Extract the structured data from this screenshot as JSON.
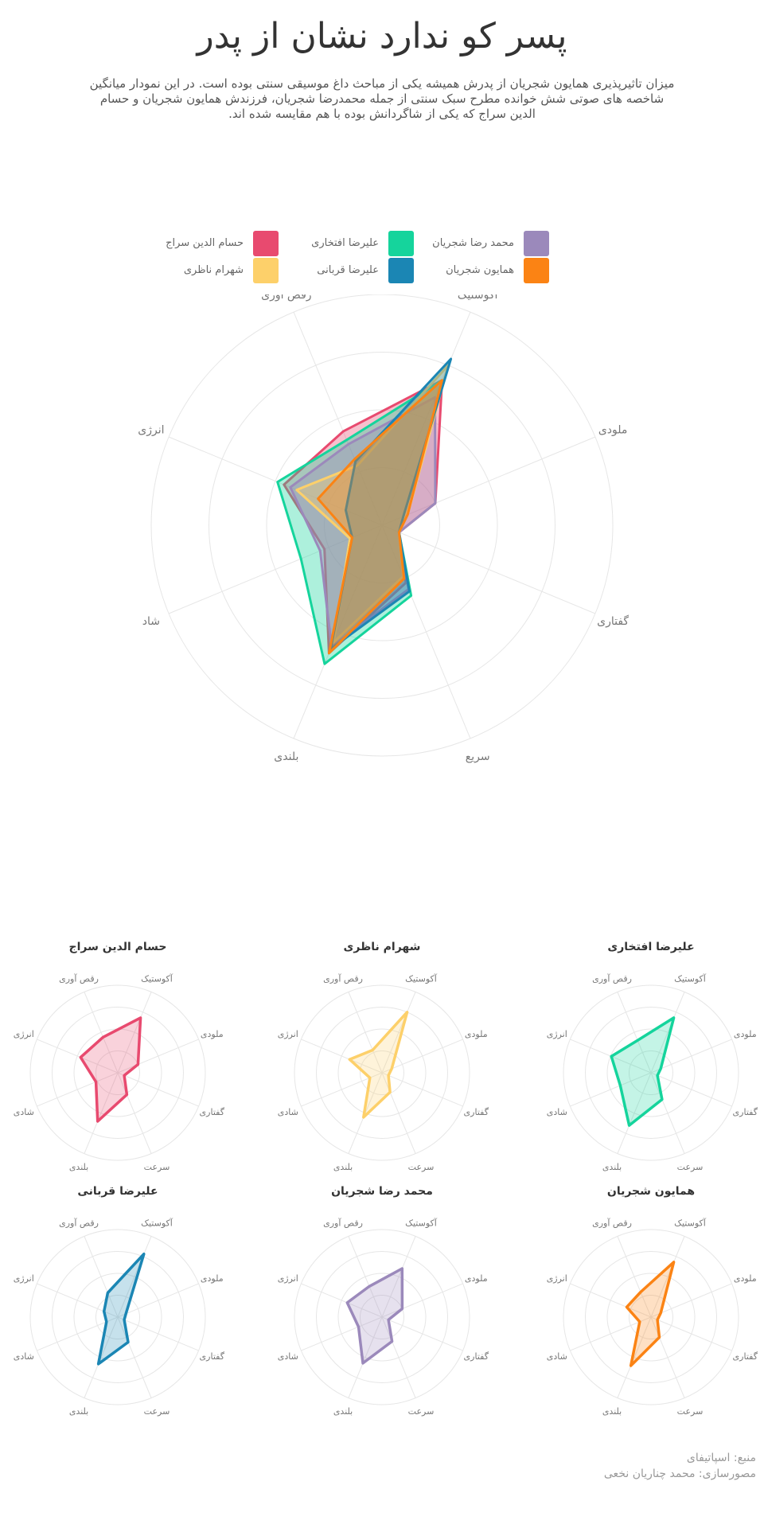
{
  "title": "پسر کو ندارد نشان از  پدر",
  "subtitle": "میزان تاثیرپذیری همایون شجریان از پدرش همیشه یکی از مباحث داغ موسیقی سنتی بوده است. در این نمودار میانگین شاخصه های صوتی شش خوانده مطرح سبک سنتی از جمله محمدرضا شجریان، فرزندش همایون شجریان و حسام الدین سراج که یکی از شاگردانش بوده با هم مقایسه شده اند.",
  "credits": {
    "source": "منبع: اسپاتیفای",
    "author": "مصورسازی: محمد چناریان نخعی"
  },
  "chart_data": [
    {
      "type": "radar",
      "axes": [
        "آکوستیک",
        "ملودی",
        "گفتاری",
        "سریع",
        "بلندی",
        "شاد",
        "انرژی",
        "رقص آوری"
      ],
      "legend_position": "top",
      "grid": true,
      "rmax": 1,
      "series": [
        {
          "name": "حسام الدین سراج",
          "color": "#e84a6f",
          "values": [
            0.68,
            0.25,
            0.08,
            0.27,
            0.6,
            0.27,
            0.46,
            0.44
          ]
        },
        {
          "name": "علیرضا افتخاری",
          "color": "#15d49c",
          "values": [
            0.68,
            0.12,
            0.08,
            0.33,
            0.65,
            0.38,
            0.49,
            0.4
          ]
        },
        {
          "name": "محمد رضا شجریان",
          "color": "#9b89bb",
          "values": [
            0.6,
            0.25,
            0.08,
            0.3,
            0.57,
            0.29,
            0.43,
            0.38
          ]
        },
        {
          "name": "شهرام ناظری",
          "color": "#fdd06a",
          "values": [
            0.75,
            0.12,
            0.08,
            0.24,
            0.55,
            0.15,
            0.4,
            0.28
          ]
        },
        {
          "name": "علیرضا قربانی",
          "color": "#1b86b4",
          "values": [
            0.78,
            0.1,
            0.08,
            0.31,
            0.58,
            0.14,
            0.17,
            0.3
          ]
        },
        {
          "name": "همایون شجریان",
          "color": "#fb8314",
          "values": [
            0.68,
            0.12,
            0.08,
            0.25,
            0.6,
            0.14,
            0.3,
            0.31
          ]
        }
      ]
    },
    {
      "type": "radar",
      "title": "حسام الدین سراج",
      "color": "#e84a6f",
      "axes": [
        "آکوستیک",
        "ملودی",
        "گفتاری",
        "سرعت",
        "بلندی",
        "شادی",
        "انرژی",
        "رقص آوری"
      ],
      "values": [
        0.68,
        0.25,
        0.08,
        0.27,
        0.6,
        0.27,
        0.46,
        0.44
      ],
      "rmax": 1
    },
    {
      "type": "radar",
      "title": "شهرام ناظری",
      "color": "#fdd06a",
      "axes": [
        "آکوستیک",
        "ملودی",
        "گفتاری",
        "سرعت",
        "بلندی",
        "شادی",
        "انرژی",
        "رقص آوری"
      ],
      "values": [
        0.75,
        0.12,
        0.08,
        0.24,
        0.55,
        0.15,
        0.4,
        0.28
      ],
      "rmax": 1
    },
    {
      "type": "radar",
      "title": "علیرضا افتخاری",
      "color": "#15d49c",
      "axes": [
        "آکوستیک",
        "ملودی",
        "گفتاری",
        "سرعت",
        "بلندی",
        "شادی",
        "انرژی",
        "رقص آوری"
      ],
      "values": [
        0.68,
        0.12,
        0.08,
        0.33,
        0.65,
        0.38,
        0.49,
        0.4
      ],
      "rmax": 1
    },
    {
      "type": "radar",
      "title": "علیرضا قربانی",
      "color": "#1b86b4",
      "axes": [
        "آکوستیک",
        "ملودی",
        "گفتاری",
        "سرعت",
        "بلندی",
        "شادی",
        "انرژی",
        "رقص آوری"
      ],
      "values": [
        0.78,
        0.1,
        0.08,
        0.31,
        0.58,
        0.14,
        0.17,
        0.3
      ],
      "rmax": 1
    },
    {
      "type": "radar",
      "title": "محمد رضا شجریان",
      "color": "#9b89bb",
      "axes": [
        "آکوستیک",
        "ملودی",
        "گفتاری",
        "سرعت",
        "بلندی",
        "شادی",
        "انرژی",
        "رقص آوری"
      ],
      "values": [
        0.6,
        0.25,
        0.08,
        0.3,
        0.57,
        0.29,
        0.43,
        0.38
      ],
      "rmax": 1
    },
    {
      "type": "radar",
      "title": "همایون شجریان",
      "color": "#fb8314",
      "axes": [
        "آکوستیک",
        "ملودی",
        "گفتاری",
        "سرعت",
        "بلندی",
        "شادی",
        "انرژی",
        "رقص آوری"
      ],
      "values": [
        0.68,
        0.12,
        0.08,
        0.25,
        0.6,
        0.14,
        0.3,
        0.31
      ],
      "rmax": 1
    }
  ]
}
